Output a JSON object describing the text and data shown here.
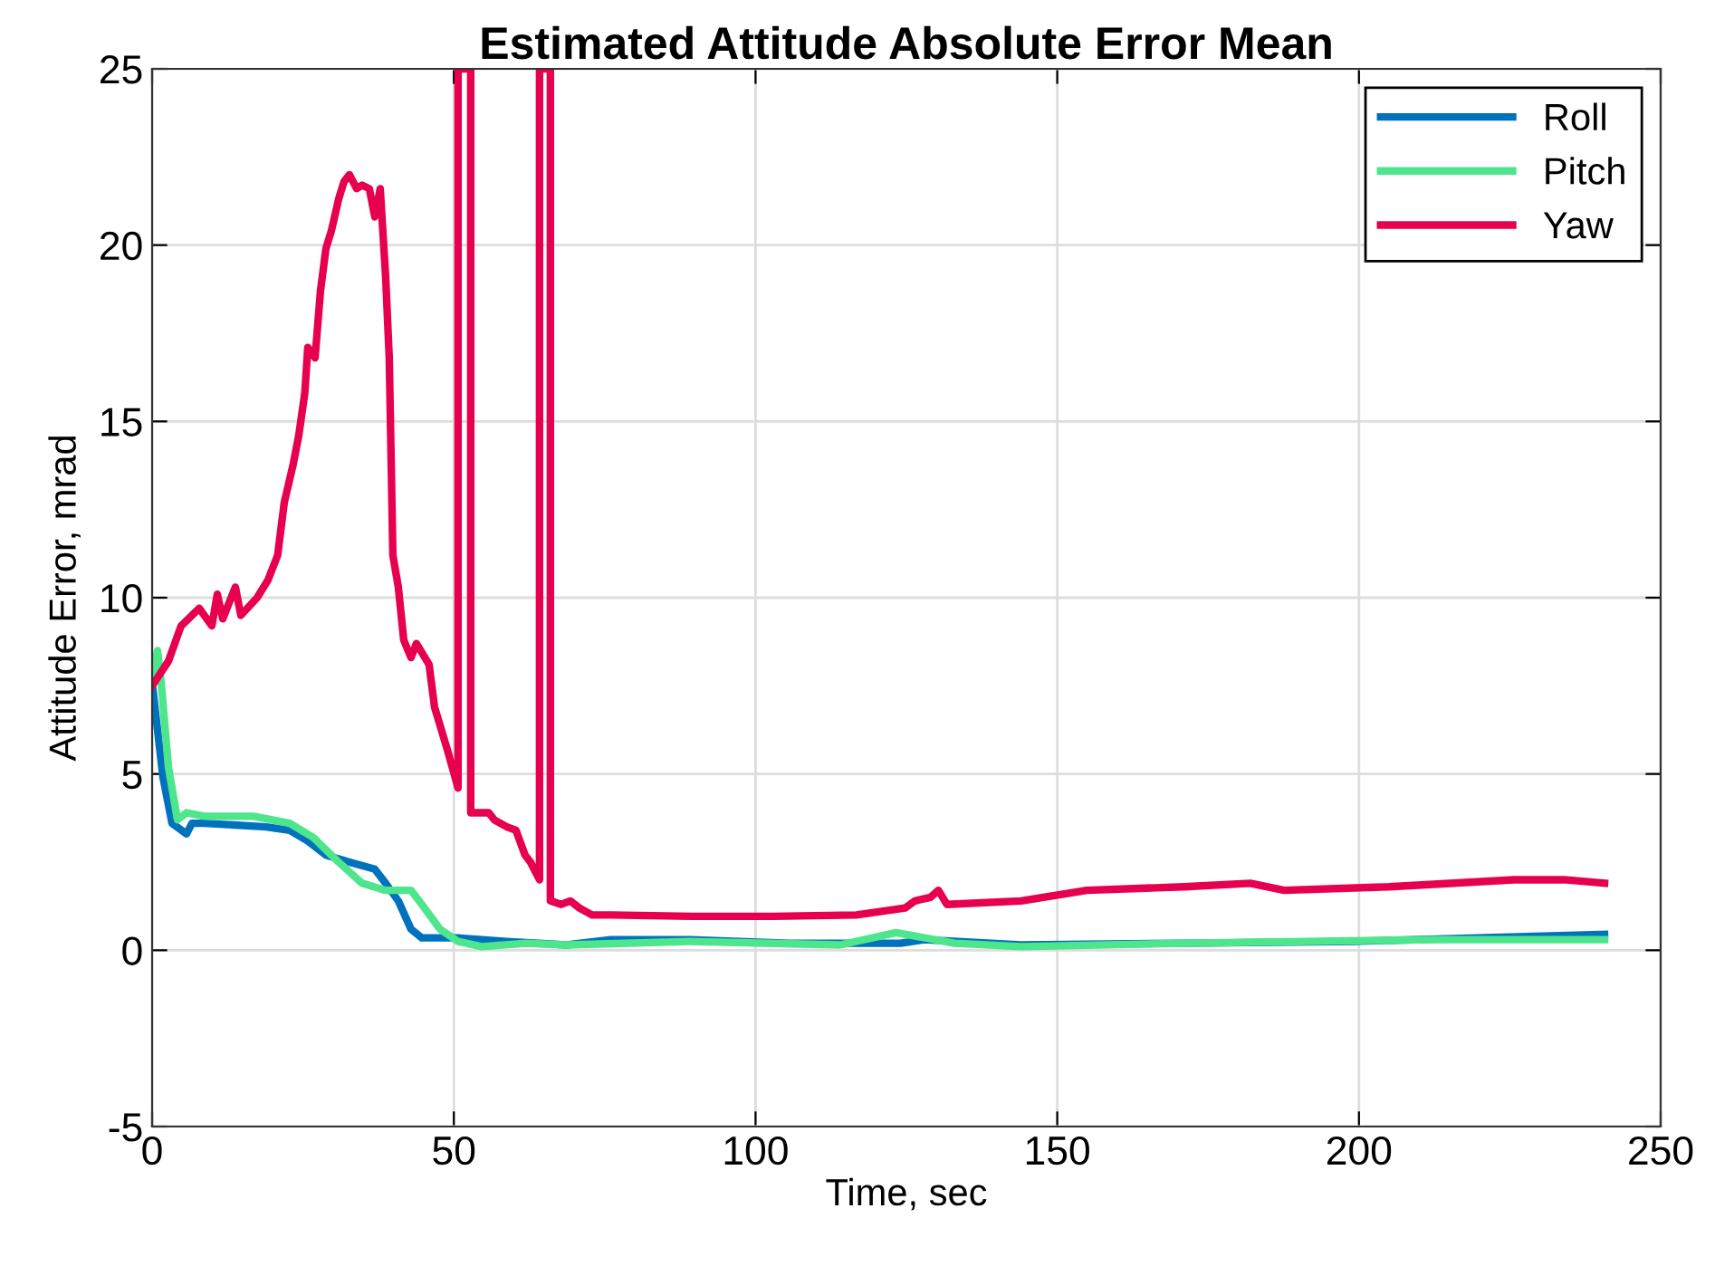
{
  "chart_data": {
    "type": "line",
    "title": "Estimated Attitude Absolute Error Mean",
    "xlabel": "Time, sec",
    "ylabel": "Attitude Error, mrad",
    "xlim": [
      0,
      250
    ],
    "ylim": [
      -5,
      25
    ],
    "xticks": [
      0,
      50,
      100,
      150,
      200,
      250
    ],
    "yticks": [
      -5,
      0,
      5,
      10,
      15,
      20,
      25
    ],
    "grid": true,
    "legend": "top right",
    "line_style": "solid",
    "marker": "none",
    "series": [
      {
        "name": "Roll",
        "color": "#0072bd",
        "x": [
          0,
          1.8,
          3.3,
          5.7,
          6.6,
          8.7,
          18.9,
          22.8,
          25.8,
          28.8,
          32.7,
          36.9,
          38.7,
          40.8,
          42.9,
          44.7,
          50.7,
          58.8,
          68.7,
          76,
          89,
          105.6,
          124,
          128,
          144,
          171,
          199,
          240.7
        ],
        "values": [
          7.6,
          4.9,
          3.6,
          3.3,
          3.6,
          3.6,
          3.5,
          3.4,
          3.1,
          2.7,
          2.5,
          2.3,
          1.9,
          1.4,
          0.6,
          0.35,
          0.35,
          0.25,
          0.15,
          0.3,
          0.3,
          0.2,
          0.2,
          0.3,
          0.15,
          0.2,
          0.25,
          0.45
        ]
      },
      {
        "name": "Pitch",
        "color": "#4de68c",
        "x": [
          0,
          0.9,
          1.5,
          2.7,
          4.2,
          5.7,
          8.7,
          16.8,
          22.8,
          26.7,
          30.9,
          34.8,
          38.7,
          42.9,
          44.7,
          47.7,
          50.7,
          54.6,
          62,
          68.7,
          89,
          114,
          123.3,
          133,
          144,
          171,
          212,
          240.7
        ],
        "values": [
          7.8,
          8.5,
          7.6,
          5.2,
          3.7,
          3.9,
          3.8,
          3.8,
          3.6,
          3.2,
          2.5,
          1.9,
          1.7,
          1.7,
          1.3,
          0.6,
          0.25,
          0.1,
          0.2,
          0.15,
          0.25,
          0.15,
          0.5,
          0.2,
          0.1,
          0.2,
          0.3,
          0.3
        ]
      },
      {
        "name": "Yaw",
        "color": "#e6004d",
        "x": [
          0,
          2.7,
          4.8,
          7.8,
          9.9,
          10.8,
          11.7,
          13.8,
          14.7,
          17.4,
          19.2,
          20.8,
          21.9,
          23.4,
          24.3,
          25.3,
          25.8,
          27.0,
          27.9,
          28.8,
          29.7,
          30.9,
          31.8,
          32.7,
          33.9,
          34.8,
          36.0,
          36.9,
          37.8,
          38.7,
          39.3,
          39.9,
          40.8,
          41.7,
          42.9,
          43.8,
          45.9,
          46.8,
          48.9,
          50.7,
          50.7,
          52.8,
          52.8,
          55.8,
          56.7,
          58.8,
          60.3,
          61.8,
          62.7,
          64.2,
          64.2,
          66.0,
          66.0,
          67.8,
          69.3,
          70.8,
          72.9,
          76.2,
          89.4,
          103,
          116.7,
          124.8,
          126.4,
          129.0,
          130.3,
          131.7,
          144,
          154.9,
          171,
          182,
          187.6,
          205,
          225.7,
          234,
          240.7
        ],
        "values": [
          7.5,
          8.2,
          9.2,
          9.7,
          9.2,
          10.1,
          9.4,
          10.3,
          9.5,
          10.0,
          10.5,
          11.2,
          12.7,
          13.8,
          14.6,
          15.8,
          17.1,
          16.8,
          18.7,
          19.9,
          20.4,
          21.3,
          21.8,
          22.0,
          21.6,
          21.7,
          21.6,
          20.8,
          21.6,
          19.1,
          16.8,
          11.2,
          10.3,
          8.8,
          8.3,
          8.7,
          8.1,
          6.9,
          5.7,
          4.6,
          25,
          25,
          3.9,
          3.9,
          3.7,
          3.5,
          3.4,
          2.7,
          2.5,
          2.0,
          25,
          25,
          1.4,
          1.3,
          1.4,
          1.2,
          1.0,
          1.0,
          0.96,
          0.96,
          1.0,
          1.2,
          1.4,
          1.5,
          1.7,
          1.3,
          1.4,
          1.7,
          1.8,
          1.9,
          1.7,
          1.8,
          2.0,
          2.0,
          1.9
        ]
      }
    ]
  }
}
